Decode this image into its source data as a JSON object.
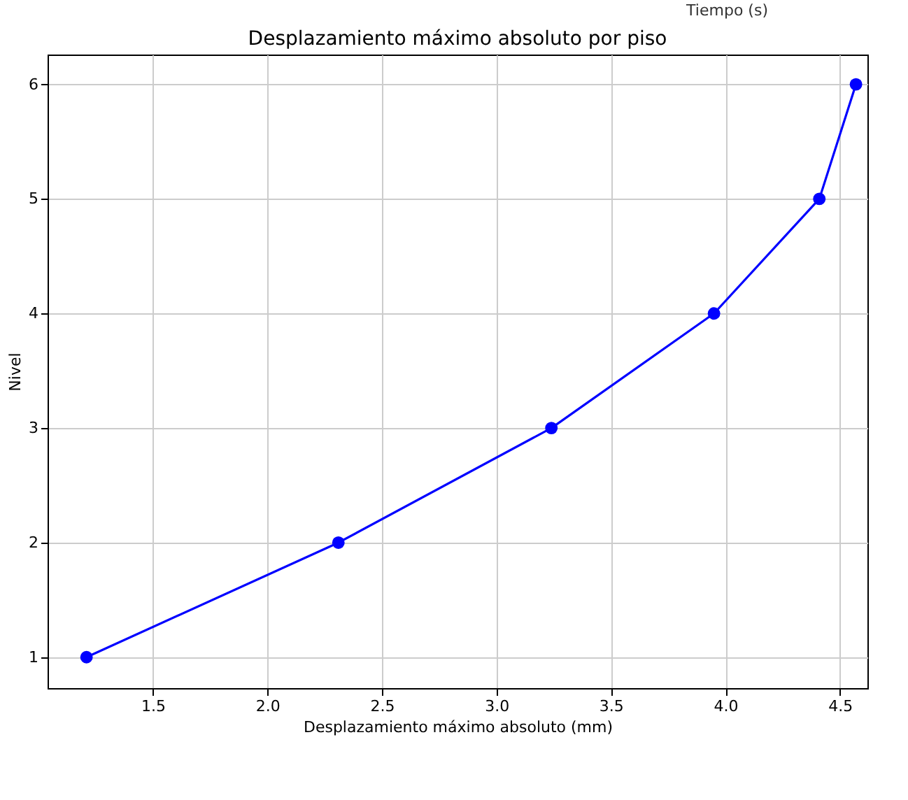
{
  "chart_data": {
    "type": "line",
    "title": "Desplazamiento máximo absoluto por piso",
    "xlabel": "Desplazamiento máximo absoluto (mm)",
    "ylabel": "Nivel",
    "annotations": [
      "Tiempo (s)"
    ],
    "x": [
      1.21,
      2.31,
      3.24,
      3.95,
      4.41,
      4.57
    ],
    "series": [
      {
        "color": "#0000ff",
        "values": [
          1,
          2,
          3,
          4,
          5,
          6
        ]
      }
    ],
    "xlim": [
      1.04,
      4.62
    ],
    "xticks": [
      {
        "value": 1.5,
        "label": "1.5"
      },
      {
        "value": 2.0,
        "label": "2.0"
      },
      {
        "value": 2.5,
        "label": "2.5"
      },
      {
        "value": 3.0,
        "label": "3.0"
      },
      {
        "value": 3.5,
        "label": "3.5"
      },
      {
        "value": 4.0,
        "label": "4.0"
      },
      {
        "value": 4.5,
        "label": "4.5"
      }
    ],
    "ylim": [
      0.73,
      6.26
    ],
    "yticks": [
      1,
      2,
      3,
      4,
      5,
      6
    ],
    "grid": true,
    "marker": "circle",
    "line_style": "solid"
  }
}
